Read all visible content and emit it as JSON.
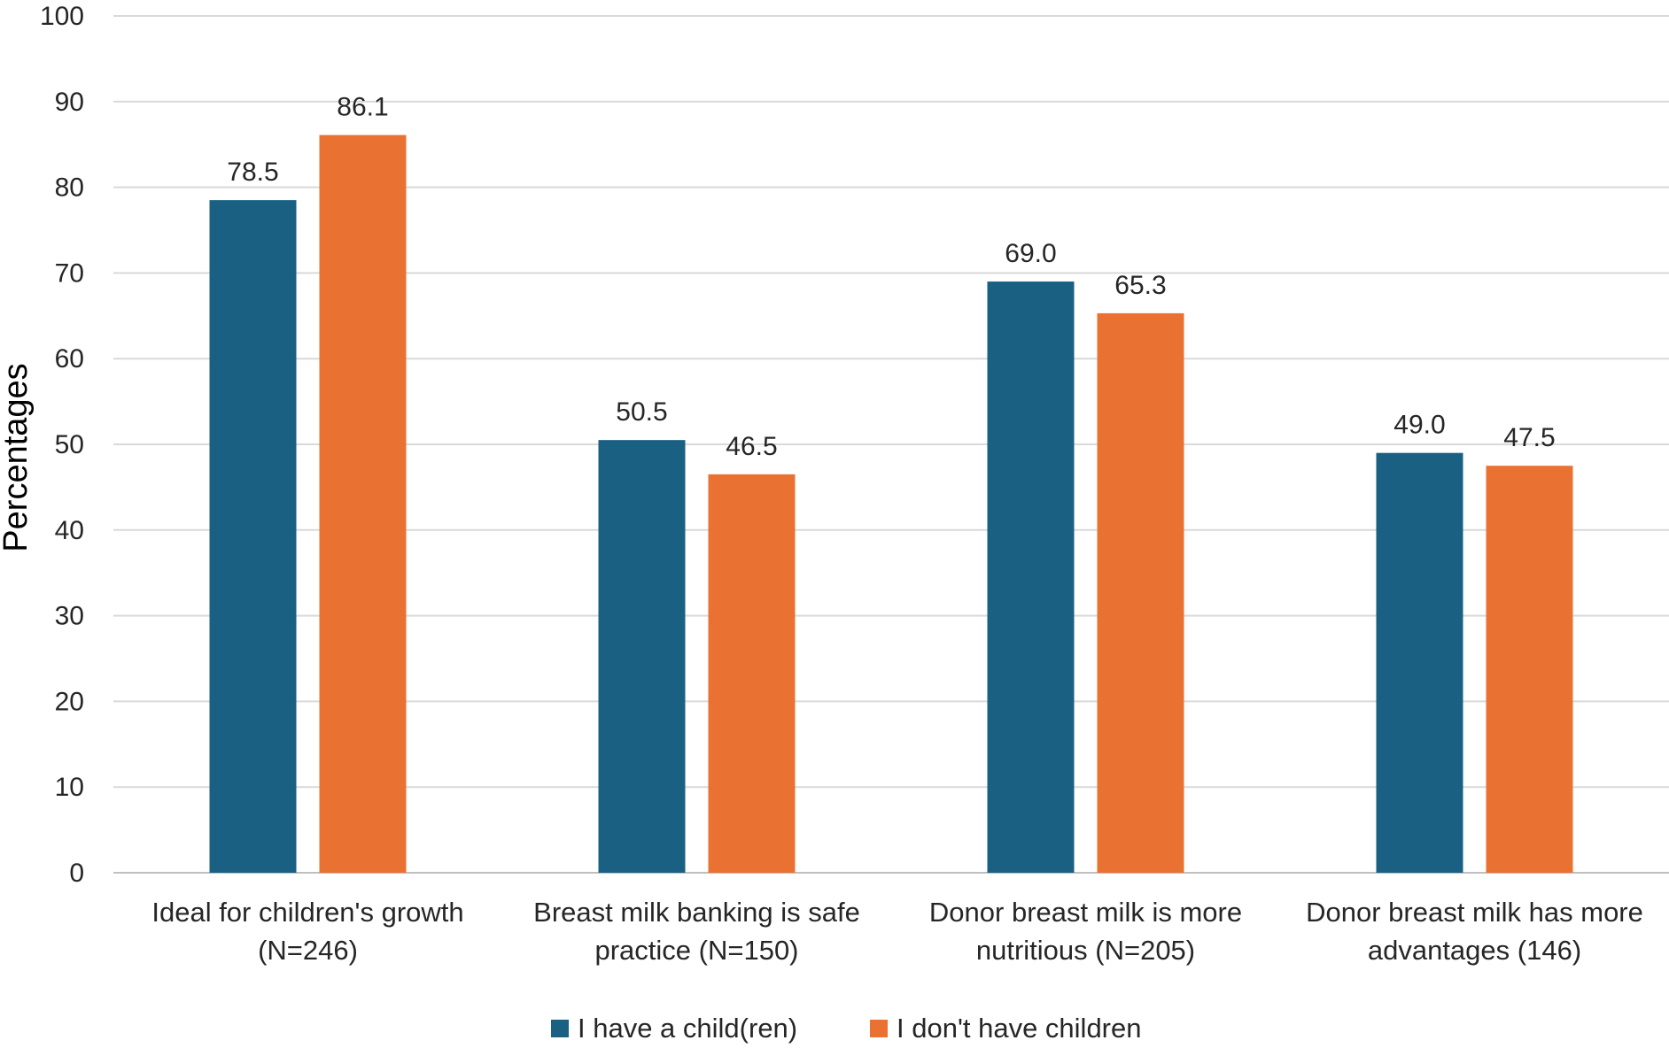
{
  "chart_data": {
    "type": "bar",
    "title": "",
    "xlabel": "",
    "ylabel": "Percentages",
    "ylim": [
      0,
      100
    ],
    "yticks": [
      0,
      10,
      20,
      30,
      40,
      50,
      60,
      70,
      80,
      90,
      100
    ],
    "grid": true,
    "legend_position": "bottom",
    "categories": [
      [
        "Ideal for children's growth",
        "(N=246)"
      ],
      [
        "Breast milk banking is safe",
        "practice (N=150)"
      ],
      [
        "Donor breast milk is more",
        "nutritious (N=205)"
      ],
      [
        "Donor breast milk has more",
        "advantages (146)"
      ]
    ],
    "series": [
      {
        "name": "I have a child(ren)",
        "color": "#1a6083",
        "values": [
          78.5,
          50.5,
          69.0,
          49.0
        ],
        "labels": [
          "78.5",
          "50.5",
          "69.0",
          "49.0"
        ]
      },
      {
        "name": "I don't have children",
        "color": "#e97132",
        "values": [
          86.1,
          46.5,
          65.3,
          47.5
        ],
        "labels": [
          "86.1",
          "46.5",
          "65.3",
          "47.5"
        ]
      }
    ]
  }
}
